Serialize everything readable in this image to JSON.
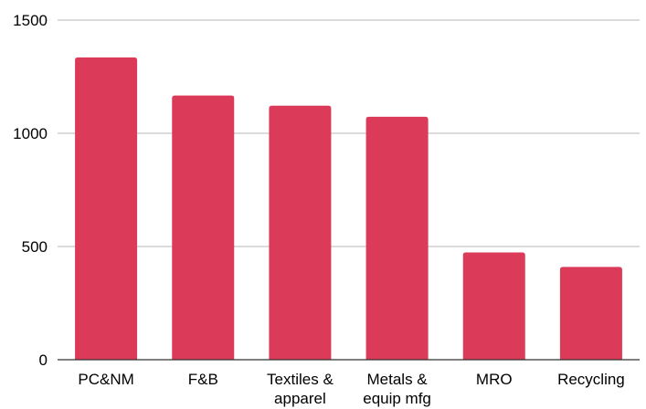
{
  "chart_data": {
    "type": "bar",
    "title": "",
    "xlabel": "",
    "ylabel": "",
    "categories": [
      [
        "PC&NM"
      ],
      [
        "F&B"
      ],
      [
        "Textiles &",
        "apparel"
      ],
      [
        "Metals &",
        "equip mfg"
      ],
      [
        "MRO"
      ],
      [
        "Recycling"
      ]
    ],
    "values": [
      1335,
      1167,
      1122,
      1073,
      474,
      410
    ],
    "ylim": [
      0,
      1500
    ],
    "yticks": [
      0,
      500,
      1000,
      1500
    ],
    "grid": true,
    "legend": "none",
    "colors": {
      "bar": "#db3a58",
      "grid": "#b7b7b7",
      "axis": "#333333",
      "text": "#000000"
    }
  }
}
